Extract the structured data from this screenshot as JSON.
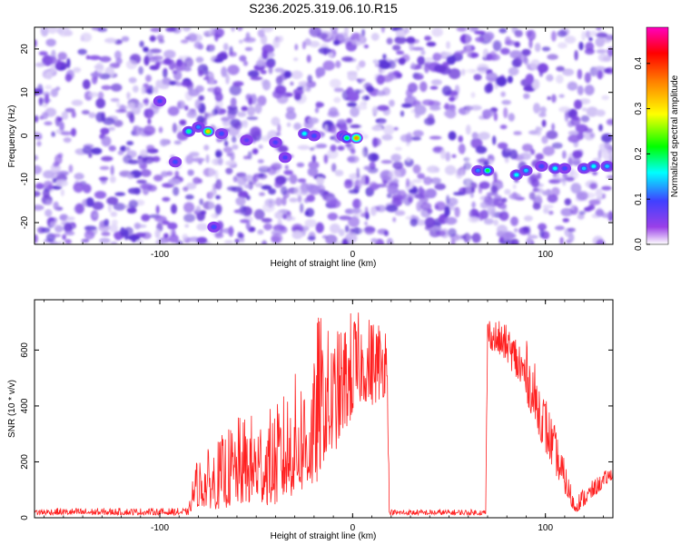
{
  "title": "S236.2025.319.06.10.R15",
  "chart_data": [
    {
      "type": "heatmap",
      "xlabel": "Height of straight line (km)",
      "ylabel": "Frequency (Hz)",
      "xlim": [
        -165,
        135
      ],
      "ylim": [
        -25,
        25
      ],
      "x_ticks": [
        -100,
        0,
        100
      ],
      "y_ticks": [
        -20,
        -10,
        0,
        10,
        20
      ],
      "colorbar": {
        "label": "Normalized spectral amplitude",
        "range": [
          0.0,
          0.48
        ],
        "ticks": [
          0.0,
          0.1,
          0.2,
          0.3,
          0.4
        ],
        "colors": [
          "#ffffff",
          "#9a40e8",
          "#4040ff",
          "#00ffff",
          "#00ff00",
          "#ffff00",
          "#ff8000",
          "#ff0000",
          "#ff00c0"
        ]
      },
      "signal_blobs": [
        {
          "x": -85,
          "y": 1.0,
          "v": 0.18
        },
        {
          "x": -80,
          "y": 2.0,
          "v": 0.12
        },
        {
          "x": -75,
          "y": 1.0,
          "v": 0.32
        },
        {
          "x": -68,
          "y": 0.5,
          "v": 0.1
        },
        {
          "x": -55,
          "y": -1.0,
          "v": 0.08
        },
        {
          "x": -40,
          "y": -1.5,
          "v": 0.09
        },
        {
          "x": -35,
          "y": -5.0,
          "v": 0.09
        },
        {
          "x": -25,
          "y": 0.5,
          "v": 0.16
        },
        {
          "x": -20,
          "y": 0.0,
          "v": 0.1
        },
        {
          "x": -5,
          "y": 0.0,
          "v": 0.12
        },
        {
          "x": -3,
          "y": -0.5,
          "v": 0.2
        },
        {
          "x": 2,
          "y": -0.5,
          "v": 0.35
        },
        {
          "x": -92,
          "y": -6.0,
          "v": 0.1
        },
        {
          "x": -100,
          "y": 8.0,
          "v": 0.09
        },
        {
          "x": -72,
          "y": -21.0,
          "v": 0.1
        },
        {
          "x": 65,
          "y": -8.0,
          "v": 0.12
        },
        {
          "x": 70,
          "y": -8.0,
          "v": 0.2
        },
        {
          "x": 85,
          "y": -9.0,
          "v": 0.16
        },
        {
          "x": 90,
          "y": -8.0,
          "v": 0.14
        },
        {
          "x": 98,
          "y": -7.0,
          "v": 0.1
        },
        {
          "x": 105,
          "y": -7.5,
          "v": 0.16
        },
        {
          "x": 110,
          "y": -7.5,
          "v": 0.1
        },
        {
          "x": 120,
          "y": -7.5,
          "v": 0.14
        },
        {
          "x": 125,
          "y": -7.0,
          "v": 0.16
        },
        {
          "x": 132,
          "y": -7.0,
          "v": 0.14
        }
      ]
    },
    {
      "type": "line",
      "xlabel": "Height of straight line (km)",
      "ylabel": "SNR (10 * v/v)",
      "xlim": [
        -165,
        135
      ],
      "ylim": [
        0,
        780
      ],
      "x_ticks": [
        -100,
        0,
        100
      ],
      "y_ticks": [
        0,
        200,
        400,
        600
      ],
      "series": [
        {
          "color": "#ff2020",
          "envelope": {
            "x": [
              -165,
              -85,
              -82,
              -70,
              -60,
              -50,
              -40,
              -30,
              -20,
              -18,
              -15,
              -10,
              -5,
              0,
              5,
              10,
              15,
              18,
              19,
              20,
              69,
              70,
              72,
              80,
              90,
              100,
              115,
              120,
              135
            ],
            "low": [
              10,
              10,
              40,
              30,
              40,
              50,
              40,
              80,
              100,
              120,
              200,
              220,
              300,
              350,
              420,
              400,
              420,
              450,
              10,
              10,
              10,
              620,
              600,
              560,
              420,
              230,
              15,
              40,
              140
            ],
            "high": [
              35,
              35,
              200,
              280,
              360,
              380,
              400,
              520,
              560,
              760,
              700,
              660,
              700,
              760,
              720,
              730,
              730,
              740,
              30,
              30,
              30,
              730,
              720,
              690,
              640,
              450,
              80,
              110,
              190
            ]
          }
        }
      ]
    }
  ]
}
